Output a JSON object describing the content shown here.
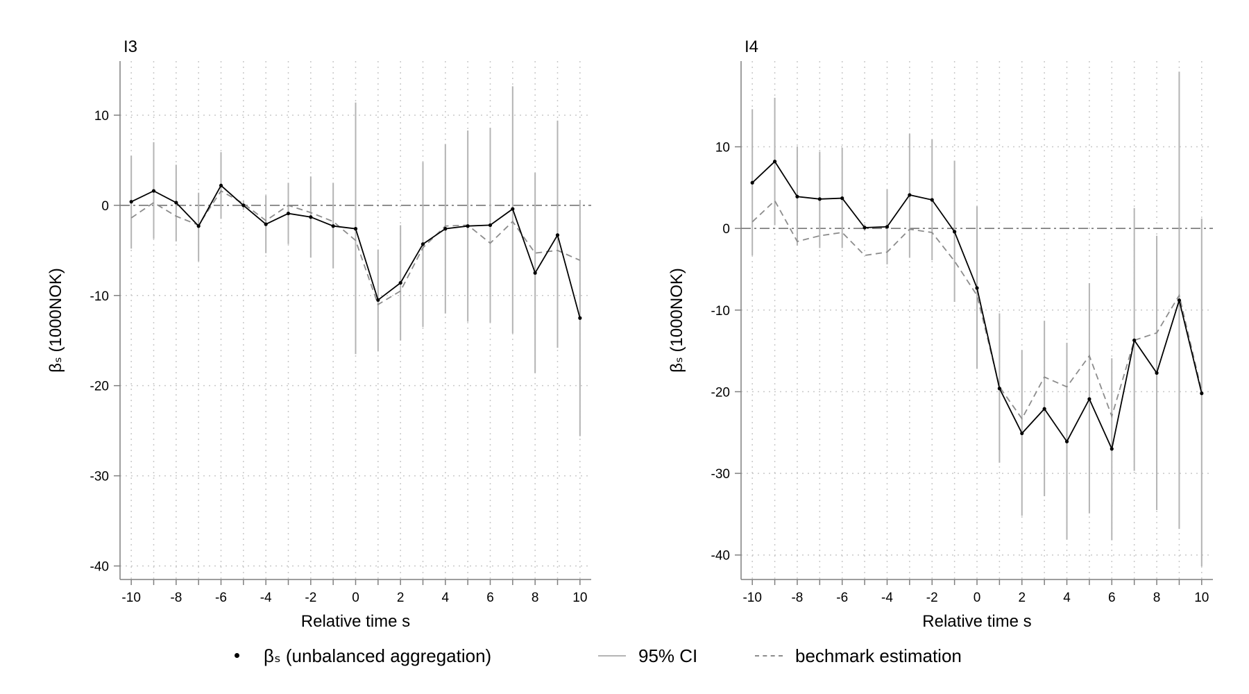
{
  "colors": {
    "estimate": "#000000",
    "ci": "#b4b4b4",
    "benchmark": "#8c8c8c",
    "zero_line": "#7f7f7f",
    "grid": "#c8c8c8",
    "axis": "#7f7f7f"
  },
  "legend": {
    "estimate_label": "βₛ (unbalanced aggregation)",
    "ci_label": "95% CI",
    "benchmark_label": "bechmark estimation"
  },
  "chart_data": [
    {
      "type": "line",
      "title": "I3",
      "xlabel": "Relative time s",
      "ylabel": "βₛ (1000NOK)",
      "xlim": [
        -10.5,
        10.5
      ],
      "ylim": [
        -41.5,
        16
      ],
      "xticks": [
        -10,
        -8,
        -6,
        -4,
        -2,
        0,
        2,
        4,
        6,
        8,
        10
      ],
      "yticks": [
        10,
        0,
        -10,
        -20,
        -30,
        -40
      ],
      "grid": true,
      "x": [
        -10,
        -9,
        -8,
        -7,
        -6,
        -5,
        -4,
        -3,
        -2,
        -1,
        0,
        1,
        2,
        3,
        4,
        5,
        6,
        7,
        8,
        9,
        10
      ],
      "series": [
        {
          "name": "βₛ (unbalanced aggregation)",
          "values": [
            0.4,
            1.6,
            0.3,
            -2.3,
            2.2,
            0.0,
            -2.1,
            -0.9,
            -1.3,
            -2.3,
            -2.6,
            -10.5,
            -8.6,
            -4.3,
            -2.6,
            -2.3,
            -2.2,
            -0.4,
            -7.5,
            -3.3,
            -12.5
          ]
        },
        {
          "name": "95% CI",
          "lower": [
            -4.8,
            -3.7,
            -4.0,
            -6.2,
            -1.5,
            -0.5,
            -5.3,
            -4.3,
            -5.8,
            -7.0,
            -16.5,
            -16.2,
            -15.0,
            -13.5,
            -12.0,
            -12.9,
            -13.0,
            -14.2,
            -18.6,
            -15.8,
            -25.6
          ],
          "upper": [
            5.5,
            7.0,
            4.5,
            1.4,
            5.9,
            0.5,
            1.1,
            2.5,
            3.2,
            2.5,
            11.4,
            -4.9,
            -2.2,
            4.8,
            6.8,
            8.3,
            8.6,
            13.2,
            3.6,
            9.4,
            0.6
          ]
        },
        {
          "name": "bechmark estimation",
          "values": [
            -1.4,
            0.3,
            -1.2,
            -2.2,
            1.6,
            0.2,
            -1.7,
            0.0,
            -0.8,
            -1.8,
            -3.9,
            -11.0,
            -9.5,
            -4.7,
            -2.3,
            -2.2,
            -4.2,
            -1.8,
            -5.3,
            -5.0,
            -6.1
          ]
        }
      ]
    },
    {
      "type": "line",
      "title": "I4",
      "xlabel": "Relative time s",
      "ylabel": "βₛ (1000NOK)",
      "xlim": [
        -10.5,
        10.5
      ],
      "ylim": [
        -43,
        20.5
      ],
      "xticks": [
        -10,
        -8,
        -6,
        -4,
        -2,
        0,
        2,
        4,
        6,
        8,
        10
      ],
      "yticks": [
        10,
        0,
        -10,
        -20,
        -30,
        -40
      ],
      "grid": true,
      "x": [
        -10,
        -9,
        -8,
        -7,
        -6,
        -5,
        -4,
        -3,
        -2,
        -1,
        0,
        1,
        2,
        3,
        4,
        5,
        6,
        7,
        8,
        9,
        10
      ],
      "series": [
        {
          "name": "βₛ (unbalanced aggregation)",
          "values": [
            5.6,
            8.2,
            3.9,
            3.6,
            3.7,
            0.1,
            0.2,
            4.1,
            3.5,
            -0.4,
            -7.3,
            -19.6,
            -25.1,
            -22.1,
            -26.1,
            -20.9,
            -27.0,
            -13.7,
            -17.7,
            -8.8,
            -20.2
          ]
        },
        {
          "name": "95% CI",
          "lower": [
            -3.3,
            0.4,
            -2.1,
            -2.4,
            -2.4,
            -0.3,
            -4.4,
            -3.6,
            -3.9,
            -9.0,
            -17.2,
            -28.7,
            -35.2,
            -32.8,
            -38.1,
            -34.9,
            -38.2,
            -29.7,
            -34.5,
            -36.8,
            -41.4
          ],
          "upper": [
            14.6,
            16.0,
            10.0,
            9.4,
            9.9,
            0.5,
            4.8,
            11.6,
            10.9,
            8.3,
            2.7,
            -10.4,
            -14.9,
            -11.3,
            -14.0,
            -6.7,
            -15.9,
            2.5,
            -0.9,
            19.2,
            1.2
          ]
        },
        {
          "name": "bechmark estimation",
          "values": [
            0.8,
            3.4,
            -1.6,
            -0.9,
            -0.5,
            -3.3,
            -2.9,
            -0.1,
            -0.5,
            -4.0,
            -8.2,
            -19.4,
            -23.3,
            -18.2,
            -19.4,
            -15.6,
            -23.0,
            -13.7,
            -12.8,
            -8.2,
            -19.9
          ]
        }
      ]
    }
  ]
}
